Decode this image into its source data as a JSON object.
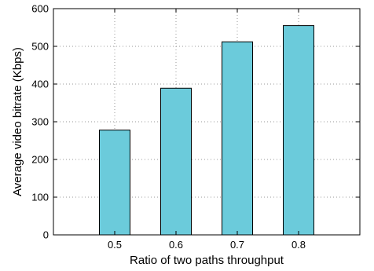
{
  "chart_data": {
    "type": "bar",
    "title": "",
    "xlabel": "Ratio of two paths throughput",
    "ylabel": "Average video bitrate (Kbps)",
    "categories": [
      "0.5",
      "0.6",
      "0.7",
      "0.8"
    ],
    "values": [
      278,
      389,
      512,
      555
    ],
    "ylim": [
      0,
      600
    ],
    "yticks": [
      0,
      100,
      200,
      300,
      400,
      500,
      600
    ],
    "xlim": [
      0.4,
      0.9
    ],
    "x_positions": [
      0.5,
      0.6,
      0.7,
      0.8
    ],
    "bar_width": 0.05,
    "grid": "dotted",
    "legend": "none",
    "colors": {
      "bar_fill": "#6bcbdb",
      "bar_stroke": "#000000",
      "grid": "#9a9a9a"
    }
  }
}
